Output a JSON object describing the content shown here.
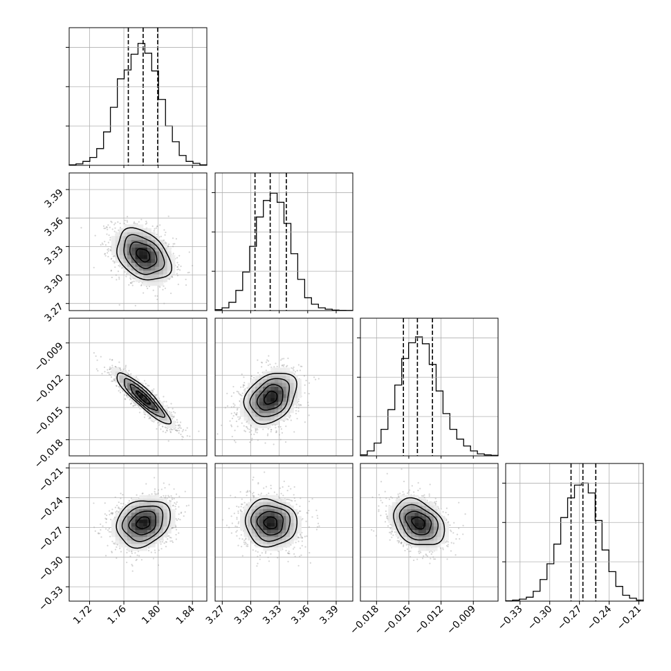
{
  "chart_data": {
    "type": "corner",
    "title": "",
    "grid": true,
    "quantile_lines": "dashed",
    "parameters": [
      {
        "ticks": [
          1.72,
          1.76,
          1.8,
          1.84
        ],
        "tick_labels": [
          "1.72",
          "1.76",
          "1.80",
          "1.84"
        ],
        "range": [
          1.6962,
          1.8568
        ],
        "mean": 1.7826,
        "std": 0.0179,
        "quantiles": [
          1.7652,
          1.7825,
          1.7995
        ],
        "hist_bin_edges": [
          1.6962,
          1.7042,
          1.7122,
          1.7203,
          1.7283,
          1.7363,
          1.7443,
          1.7524,
          1.7604,
          1.7684,
          1.7765,
          1.7845,
          1.7925,
          1.8005,
          1.8086,
          1.8166,
          1.8246,
          1.8326,
          1.8407,
          1.8487,
          1.8568
        ],
        "hist_counts": [
          0.5,
          1.5,
          4,
          8,
          17,
          34,
          59,
          88,
          97,
          113,
          124,
          114,
          96,
          67,
          40,
          24,
          10,
          4,
          2,
          0.5
        ],
        "hist_ymax": 140
      },
      {
        "ticks": [
          3.27,
          3.3,
          3.33,
          3.36,
          3.39
        ],
        "tick_labels": [
          "3.27",
          "3.30",
          "3.33",
          "3.36",
          "3.39"
        ],
        "range": [
          3.2625,
          3.4075
        ],
        "mean": 3.321,
        "std": 0.0155,
        "quantiles": [
          3.3045,
          3.3205,
          3.3375
        ],
        "hist_bin_edges": [
          3.2625,
          3.2698,
          3.277,
          3.2843,
          3.2915,
          3.2988,
          3.306,
          3.3133,
          3.3205,
          3.3278,
          3.335,
          3.3423,
          3.3495,
          3.3568,
          3.364,
          3.3713,
          3.3785,
          3.3858,
          3.393,
          3.4003,
          3.4075
        ],
        "hist_counts": [
          1,
          3,
          9,
          22,
          42,
          70,
          102,
          120,
          128,
          118,
          95,
          62,
          34,
          14,
          7,
          3,
          1.5,
          0.5,
          0.3,
          0.2
        ],
        "hist_ymax": 150
      },
      {
        "ticks": [
          -0.018,
          -0.015,
          -0.012,
          -0.009
        ],
        "tick_labels": [
          "−0.018",
          "−0.015",
          "−0.012",
          "−0.009"
        ],
        "range": [
          -0.0195,
          -0.0067
        ],
        "mean": -0.0141,
        "std": 0.00135,
        "quantiles": [
          -0.0155,
          -0.0142,
          -0.0128
        ],
        "hist_bin_edges": [
          -0.0195,
          -0.01886,
          -0.01822,
          -0.01758,
          -0.01694,
          -0.0163,
          -0.01566,
          -0.01502,
          -0.01438,
          -0.01374,
          -0.0131,
          -0.01246,
          -0.01182,
          -0.01118,
          -0.01054,
          -0.0099,
          -0.00926,
          -0.00862,
          -0.00798,
          -0.00734,
          -0.0067
        ],
        "hist_counts": [
          1,
          5,
          13,
          27,
          47,
          72,
          99,
          115,
          121,
          114,
          93,
          66,
          43,
          27,
          17,
          10,
          5,
          2,
          1,
          0.5
        ],
        "hist_ymax": 140
      },
      {
        "ticks": [
          -0.33,
          -0.3,
          -0.27,
          -0.24,
          -0.21
        ],
        "tick_labels": [
          "−0.33",
          "−0.30",
          "−0.27",
          "−0.24",
          "−0.21"
        ],
        "range": [
          -0.3445,
          -0.2055
        ],
        "mean": -0.2655,
        "std": 0.0135,
        "quantiles": [
          -0.2785,
          -0.2665,
          -0.2535
        ],
        "hist_bin_edges": [
          -0.3445,
          -0.33755,
          -0.3306,
          -0.32365,
          -0.3167,
          -0.30975,
          -0.3028,
          -0.29585,
          -0.2889,
          -0.28195,
          -0.275,
          -0.26805,
          -0.2611,
          -0.25415,
          -0.2472,
          -0.24025,
          -0.2333,
          -0.22635,
          -0.2194,
          -0.21245,
          -0.2055
        ],
        "hist_counts": [
          0.3,
          1,
          2,
          4,
          10,
          22,
          38,
          58,
          85,
          105,
          118,
          120,
          110,
          82,
          52,
          30,
          15,
          6,
          3,
          1
        ],
        "hist_ymax": 140
      }
    ],
    "correlations": [
      [
        1,
        -0.35,
        -0.9,
        0.2
      ],
      [
        -0.35,
        1,
        0.3,
        -0.05
      ],
      [
        -0.9,
        0.3,
        1,
        -0.3
      ],
      [
        0.2,
        -0.05,
        -0.3,
        1
      ]
    ],
    "contour_levels_sigma": [
      0.5,
      1.0,
      1.5,
      2.0
    ],
    "density_grid_bins": 20,
    "colors": {
      "hist": "#000000",
      "contour": "#000000",
      "points": "#a0a0a0",
      "grid": "#b0b0b0",
      "axes": "#000000"
    }
  }
}
